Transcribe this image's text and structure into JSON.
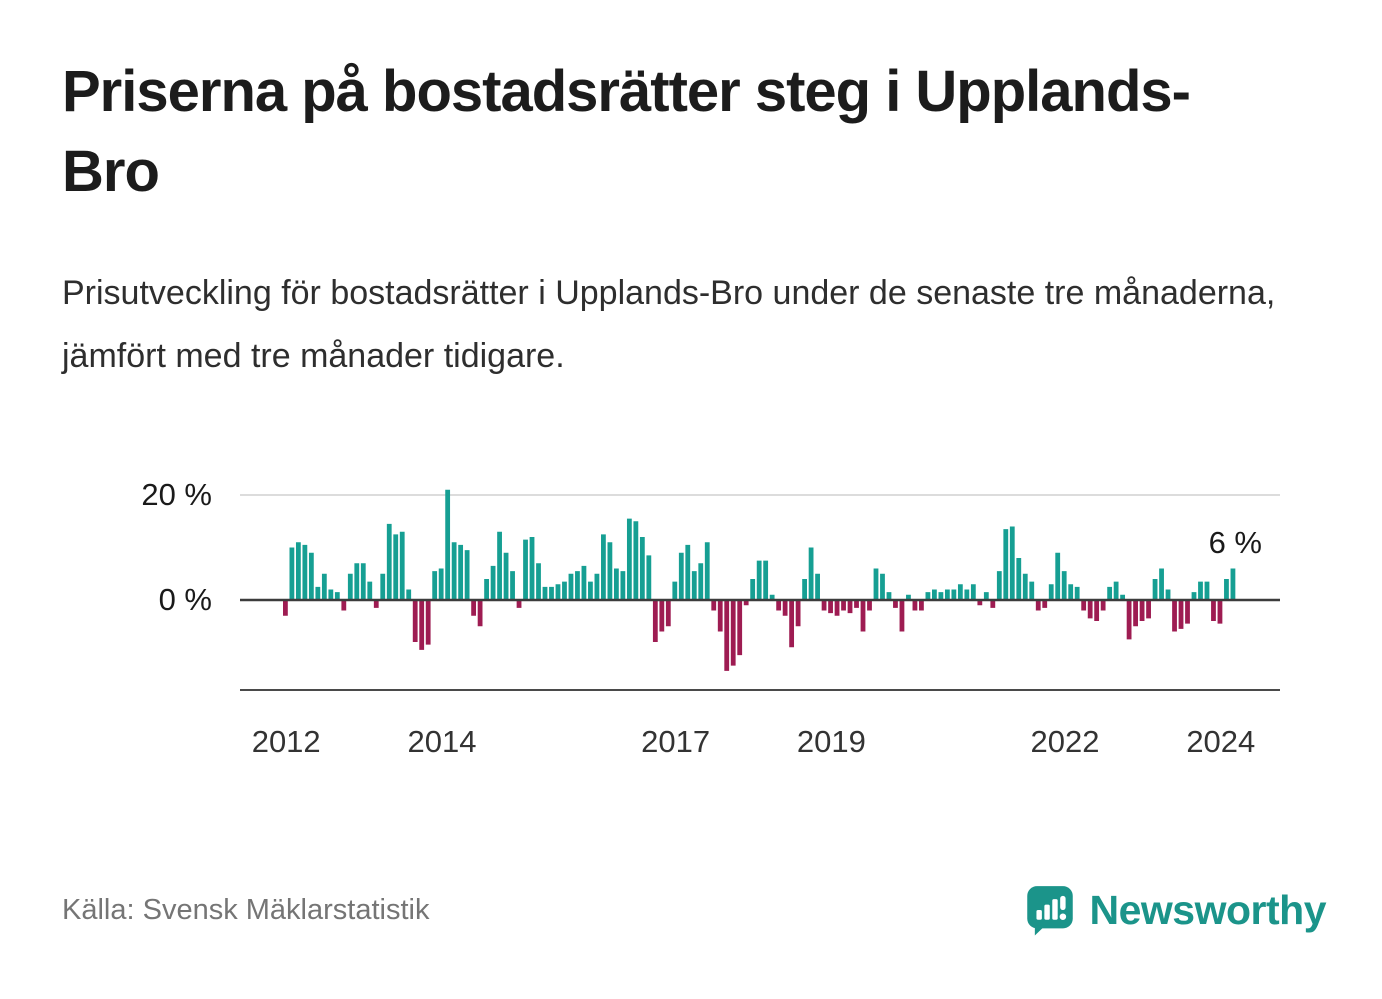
{
  "page": {
    "title": "Priserna på bostadsrätter steg i Upplands-Bro",
    "subtitle": "Prisutveckling för bostadsrätter i Upplands-Bro under de senaste tre månaderna, jämfört med tre månader tidigare.",
    "source": "Källa: Svensk Mäklarstatistik",
    "brand": "Newsworthy"
  },
  "colors": {
    "positive_bar": "#169F93",
    "negative_bar": "#9E1C52",
    "gridline": "#DCDCDC",
    "axis": "#4A4A4A",
    "baseline": "#3C3C3C",
    "tick_label": "#333333",
    "y_label": "#1A1A1A",
    "annotation": "#1A1A1A",
    "brand_teal": "#1B948A"
  },
  "chart_data": {
    "type": "bar",
    "title": "Priserna på bostadsrätter steg i Upplands-Bro",
    "unit": "%",
    "x_start": "2012-01",
    "x_frequency": "monthly",
    "ylim": [
      -16,
      23
    ],
    "grid": "horizontal-20-only",
    "values": [
      -3,
      10,
      11,
      10.5,
      9,
      2.5,
      5,
      2,
      1.5,
      -2,
      5,
      7,
      7,
      3.5,
      -1.5,
      5,
      14.5,
      12.5,
      13,
      2,
      -8,
      -9.5,
      -8.5,
      5.5,
      6,
      21,
      11,
      10.5,
      9.5,
      -3,
      -5,
      4,
      6.5,
      13,
      9,
      5.5,
      -1.5,
      11.5,
      12,
      7,
      2.5,
      2.5,
      3,
      3.5,
      5,
      5.5,
      6.5,
      3.5,
      5,
      12.5,
      11,
      6,
      5.5,
      15.5,
      15,
      12,
      8.5,
      -8,
      -6,
      -5,
      3.5,
      9,
      10.5,
      5.5,
      7,
      11,
      -2,
      -6,
      -13.5,
      -12.5,
      -10.5,
      -1,
      4,
      7.5,
      7.5,
      1,
      -2,
      -3,
      -9,
      -5,
      4,
      10,
      5,
      -2,
      -2.5,
      -3,
      -2,
      -2.5,
      -1.5,
      -6,
      -2,
      6,
      5,
      1.5,
      -1.5,
      -6,
      1,
      -2,
      -2,
      1.5,
      2,
      1.5,
      2,
      2,
      3,
      2,
      3,
      -1,
      1.5,
      -1.5,
      5.5,
      13.5,
      14,
      8,
      5,
      3.5,
      -2,
      -1.5,
      3,
      9,
      5.5,
      3,
      2.5,
      -2,
      -3.5,
      -4,
      -2,
      2.5,
      3.5,
      1,
      -7.5,
      -5,
      -4,
      -3.5,
      4,
      6,
      2,
      -6,
      -5.5,
      -4.5,
      1.5,
      3.5,
      3.5,
      -4,
      -4.5,
      4,
      6
    ],
    "y_ticks": [
      {
        "label": "20 %",
        "value": 20
      },
      {
        "label": "0 %",
        "value": 0
      }
    ],
    "x_ticks": [
      {
        "label": "2012",
        "month_index": 0
      },
      {
        "label": "2014",
        "month_index": 24
      },
      {
        "label": "2017",
        "month_index": 60
      },
      {
        "label": "2019",
        "month_index": 84
      },
      {
        "label": "2022",
        "month_index": 120
      },
      {
        "label": "2024",
        "month_index": 144
      }
    ],
    "last_value_label": "6 %"
  }
}
